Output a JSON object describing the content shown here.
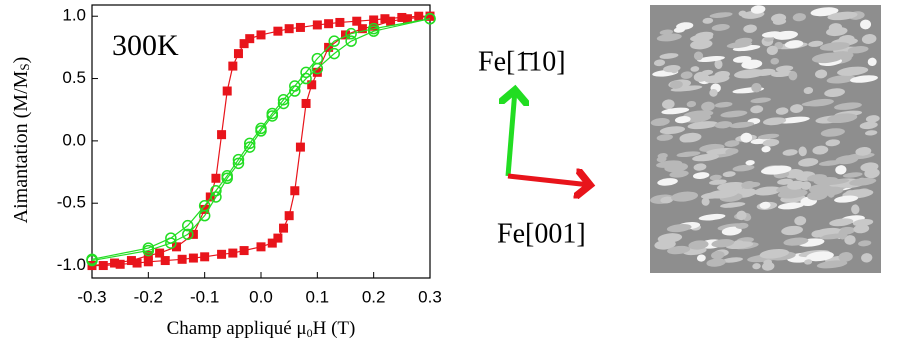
{
  "chart_data": {
    "type": "scatter",
    "annotation": "300K",
    "xlabel": [
      "Champ appliqué μ",
      "0",
      "H (T)"
    ],
    "ylabel": [
      "Aimantation (M/M",
      "S",
      ")"
    ],
    "xlim": [
      -0.3,
      0.3
    ],
    "ylim": [
      -1.1,
      1.09
    ],
    "xticks": [
      -0.3,
      -0.2,
      -0.1,
      {
        "value": 0,
        "label": "0.0"
      },
      0.1,
      0.2,
      0.3
    ],
    "yticks": [
      {
        "value": -1,
        "label": "-1.0"
      },
      -0.5,
      {
        "value": 0,
        "label": "0.0"
      },
      0.5,
      {
        "value": 1,
        "label": "1.0"
      }
    ],
    "series": [
      {
        "color": "#e8141b",
        "marker": "square",
        "x": [
          -0.3,
          -0.28,
          -0.25,
          -0.22,
          -0.2,
          -0.17,
          -0.14,
          -0.12,
          -0.1,
          -0.07,
          -0.05,
          -0.03,
          0,
          0.02,
          0.03,
          0.04,
          0.05,
          0.06,
          0.07,
          0.08,
          0.09,
          0.1,
          0.12,
          0.15,
          0.18,
          0.2,
          0.23,
          0.26,
          0.3
        ],
        "values": [
          -1.0,
          -1.0,
          -0.99,
          -0.98,
          -0.97,
          -0.96,
          -0.95,
          -0.94,
          -0.93,
          -0.91,
          -0.9,
          -0.88,
          -0.85,
          -0.82,
          -0.78,
          -0.7,
          -0.6,
          -0.4,
          -0.05,
          0.3,
          0.45,
          0.55,
          0.75,
          0.85,
          0.9,
          0.92,
          0.96,
          0.98,
          1.0
        ]
      },
      {
        "color": "#e8141b",
        "marker": "square",
        "x": [
          0.3,
          0.28,
          0.25,
          0.22,
          0.2,
          0.17,
          0.14,
          0.12,
          0.1,
          0.07,
          0.05,
          0.03,
          0,
          -0.02,
          -0.03,
          -0.04,
          -0.05,
          -0.06,
          -0.07,
          -0.08,
          -0.09,
          -0.1,
          -0.12,
          -0.15,
          -0.18,
          -0.2,
          -0.23,
          -0.26,
          -0.3
        ],
        "values": [
          1.0,
          1.0,
          0.99,
          0.98,
          0.97,
          0.96,
          0.95,
          0.94,
          0.93,
          0.91,
          0.9,
          0.88,
          0.85,
          0.82,
          0.78,
          0.7,
          0.6,
          0.4,
          0.05,
          -0.3,
          -0.45,
          -0.55,
          -0.75,
          -0.85,
          -0.9,
          -0.92,
          -0.96,
          -0.98,
          -1.0
        ]
      },
      {
        "color": "#22dd22",
        "marker": "circle",
        "x": [
          -0.3,
          -0.2,
          -0.16,
          -0.13,
          -0.1,
          -0.08,
          -0.06,
          -0.04,
          -0.02,
          0,
          0.02,
          0.04,
          0.06,
          0.08,
          0.1,
          0.13,
          0.16,
          0.2,
          0.3
        ],
        "values": [
          -0.96,
          -0.88,
          -0.82,
          -0.75,
          -0.6,
          -0.45,
          -0.3,
          -0.18,
          -0.05,
          0.08,
          0.2,
          0.3,
          0.4,
          0.5,
          0.58,
          0.7,
          0.8,
          0.88,
          0.98
        ]
      },
      {
        "color": "#22dd22",
        "marker": "circle",
        "x": [
          0.3,
          0.2,
          0.16,
          0.13,
          0.1,
          0.08,
          0.06,
          0.04,
          0.02,
          0,
          -0.02,
          -0.04,
          -0.06,
          -0.08,
          -0.1,
          -0.13,
          -0.16,
          -0.2,
          -0.3
        ],
        "values": [
          0.98,
          0.9,
          0.86,
          0.8,
          0.66,
          0.55,
          0.44,
          0.33,
          0.22,
          0.1,
          -0.02,
          -0.15,
          -0.28,
          -0.4,
          -0.52,
          -0.68,
          -0.78,
          -0.86,
          -0.95
        ]
      }
    ]
  },
  "arrows": {
    "green_label": "Fe[1̄10]",
    "red_label": "Fe[001]"
  }
}
